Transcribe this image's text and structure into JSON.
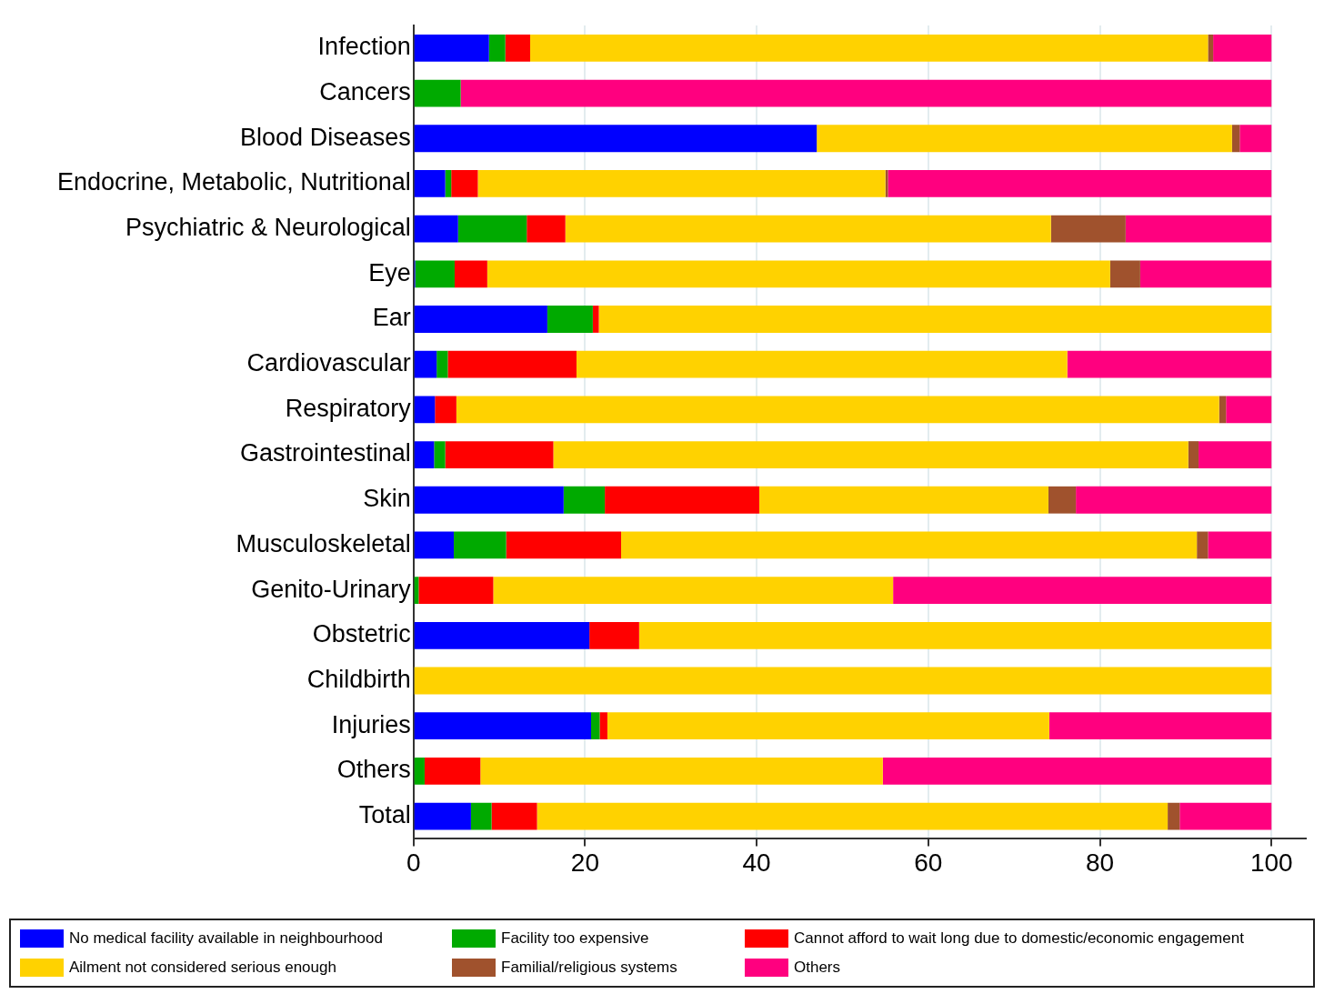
{
  "chart_data": {
    "type": "bar",
    "orientation": "horizontal",
    "stacked": true,
    "categories": [
      "Infection",
      "Cancers",
      "Blood Diseases",
      "Endocrine, Metabolic, Nutritional",
      "Psychiatric & Neurological",
      "Eye",
      "Ear",
      "Cardiovascular",
      "Respiratory",
      "Gastrointestinal",
      "Skin",
      "Musculoskeletal",
      "Genito-Urinary",
      "Obstetric",
      "Childbirth",
      "Injuries",
      "Others",
      "Total"
    ],
    "series": [
      {
        "name": "No medical facility available in neighbourhood",
        "color": "#0000ff",
        "values": [
          8.8,
          null,
          47.0,
          3.7,
          5.2,
          0.2,
          15.6,
          2.7,
          2.5,
          2.4,
          17.5,
          4.7,
          null,
          20.5,
          null,
          20.7,
          null,
          6.7
        ]
      },
      {
        "name": "Facility too expensive",
        "color": "#00aa00",
        "values": [
          1.9,
          5.5,
          null,
          0.7,
          8.0,
          4.6,
          5.3,
          1.3,
          null,
          1.3,
          4.8,
          6.1,
          0.6,
          null,
          null,
          1.0,
          1.3,
          2.4
        ]
      },
      {
        "name": "Cannot afford to wait long due to domestic/economic engagement",
        "color": "#ff0000",
        "values": [
          2.9,
          null,
          null,
          3.1,
          4.5,
          3.8,
          0.7,
          15.0,
          2.5,
          12.6,
          18.0,
          13.4,
          8.7,
          5.8,
          null,
          0.9,
          6.5,
          5.3
        ]
      },
      {
        "name": "Ailment not considered serious enough",
        "color": "#ffd200",
        "values": [
          79.0,
          null,
          48.4,
          47.5,
          56.6,
          72.6,
          78.4,
          57.2,
          88.9,
          74.0,
          33.7,
          67.1,
          46.6,
          73.7,
          100,
          51.5,
          46.9,
          73.5
        ]
      },
      {
        "name": "Familial/religious systems",
        "color": "#a0522d",
        "values": [
          0.6,
          null,
          0.9,
          0.3,
          8.7,
          3.5,
          null,
          null,
          0.8,
          1.2,
          3.2,
          1.3,
          null,
          null,
          null,
          null,
          null,
          1.4
        ]
      },
      {
        "name": "Others",
        "color": "#ff007f",
        "values": [
          6.8,
          94.5,
          3.7,
          44.7,
          17.0,
          15.3,
          null,
          23.8,
          5.3,
          8.5,
          22.8,
          7.4,
          44.1,
          null,
          null,
          25.9,
          45.3,
          10.7
        ]
      }
    ],
    "xlim": [
      0,
      104
    ],
    "xticks": [
      0,
      20,
      40,
      60,
      80,
      100
    ],
    "grid": "x",
    "legend": "bottom"
  }
}
